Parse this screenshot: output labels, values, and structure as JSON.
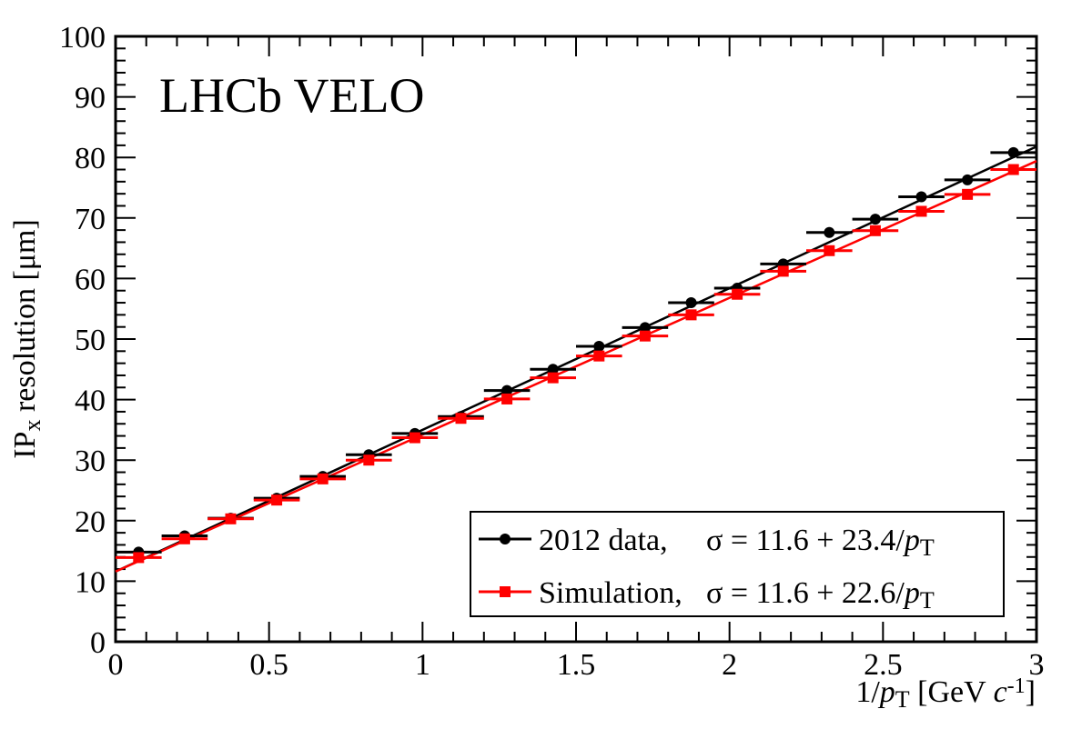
{
  "chart_data": {
    "type": "scatter",
    "banner": "LHCb VELO",
    "xlabel": {
      "prefix": "1/",
      "var": "p",
      "sub": "T",
      "unit_open": " [GeV ",
      "unit_var": "c",
      "unit_sup": "-1",
      "unit_close": "]"
    },
    "ylabel": {
      "main": "IP",
      "sub": "x",
      "rest": " resolution [μm]"
    },
    "xlim": [
      0,
      3
    ],
    "ylim": [
      0,
      100
    ],
    "x_ticks": [
      "0",
      "0.5",
      "1",
      "1.5",
      "2",
      "2.5",
      "3"
    ],
    "y_ticks": [
      "0",
      "10",
      "20",
      "30",
      "40",
      "50",
      "60",
      "70",
      "80",
      "90",
      "100"
    ],
    "x_tick_values": [
      0,
      0.5,
      1,
      1.5,
      2,
      2.5,
      3
    ],
    "y_tick_values": [
      0,
      10,
      20,
      30,
      40,
      50,
      60,
      70,
      80,
      90,
      100
    ],
    "bin_half_width": 0.075,
    "legend_position": "bottom-right",
    "series": [
      {
        "name": "2012 data, σ = 11.6 + 23.4/pT",
        "legend": {
          "label": "2012 data,",
          "formula": "σ = 11.6 + 23.4/",
          "var": "p",
          "sub": "T"
        },
        "color": "#000000",
        "marker": "circle",
        "fit": {
          "intercept": 11.6,
          "slope": 23.4
        },
        "x": [
          0.075,
          0.225,
          0.375,
          0.525,
          0.675,
          0.825,
          0.975,
          1.125,
          1.275,
          1.425,
          1.575,
          1.725,
          1.875,
          2.025,
          2.175,
          2.325,
          2.475,
          2.625,
          2.775,
          2.925
        ],
        "y": [
          14.8,
          17.5,
          20.4,
          23.7,
          27.3,
          30.9,
          34.4,
          37.2,
          41.5,
          45.0,
          48.8,
          51.9,
          56.0,
          58.4,
          62.4,
          67.6,
          69.8,
          73.5,
          76.3,
          80.8
        ]
      },
      {
        "name": "Simulation, σ = 11.6 + 22.6/pT",
        "legend": {
          "label": "Simulation,",
          "formula": "σ = 11.6 + 22.6/",
          "var": "p",
          "sub": "T"
        },
        "color": "#ff0000",
        "marker": "square",
        "fit": {
          "intercept": 11.6,
          "slope": 22.6
        },
        "x": [
          0.075,
          0.225,
          0.375,
          0.525,
          0.675,
          0.825,
          0.975,
          1.125,
          1.275,
          1.425,
          1.575,
          1.725,
          1.875,
          2.025,
          2.175,
          2.325,
          2.475,
          2.625,
          2.775,
          2.925
        ],
        "y": [
          13.9,
          17.0,
          20.3,
          23.4,
          26.9,
          30.0,
          33.7,
          36.9,
          40.1,
          43.6,
          47.2,
          50.5,
          54.0,
          57.4,
          61.2,
          64.6,
          67.9,
          71.1,
          73.9,
          78.0
        ]
      }
    ]
  }
}
